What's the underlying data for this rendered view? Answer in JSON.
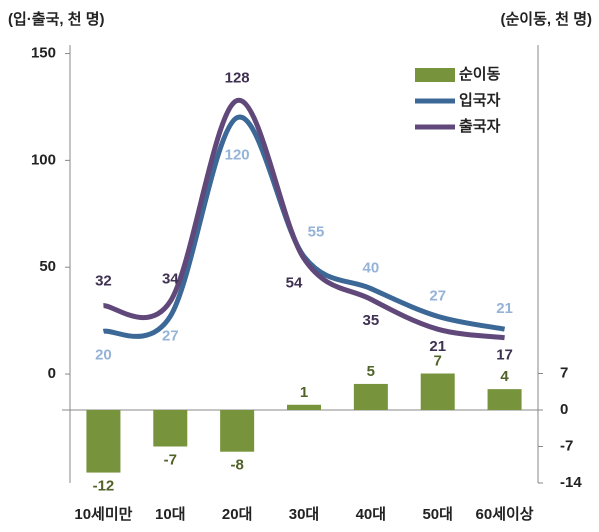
{
  "chart_data": {
    "type": "bar+line",
    "y_title": "(입·출국, 천 명)",
    "y2_title": "(순이동, 천 명)",
    "categories": [
      "10세미만",
      "10대",
      "20대",
      "30대",
      "40대",
      "50대",
      "60세이상"
    ],
    "ylim": [
      -51,
      154
    ],
    "yticks": [
      0,
      50,
      100,
      150
    ],
    "y2lim": [
      -14,
      70
    ],
    "y2ticks": [
      -14,
      -7,
      0,
      7
    ],
    "legend": "top-right",
    "series": [
      {
        "name": "순이동",
        "type": "bar",
        "axis": "y2",
        "color": "#77933c",
        "label_color": "#4f6228",
        "values": [
          -12,
          -7,
          -8,
          1,
          5,
          7,
          4
        ]
      },
      {
        "name": "입국자",
        "type": "line",
        "color": "#3b6896",
        "label_color": "#95b3d7",
        "values": [
          20,
          27,
          120,
          55,
          40,
          27,
          21
        ]
      },
      {
        "name": "출국자",
        "type": "line",
        "color": "#60497a",
        "label_color": "#3f3151",
        "values": [
          32,
          34,
          128,
          54,
          35,
          21,
          17
        ]
      }
    ]
  }
}
